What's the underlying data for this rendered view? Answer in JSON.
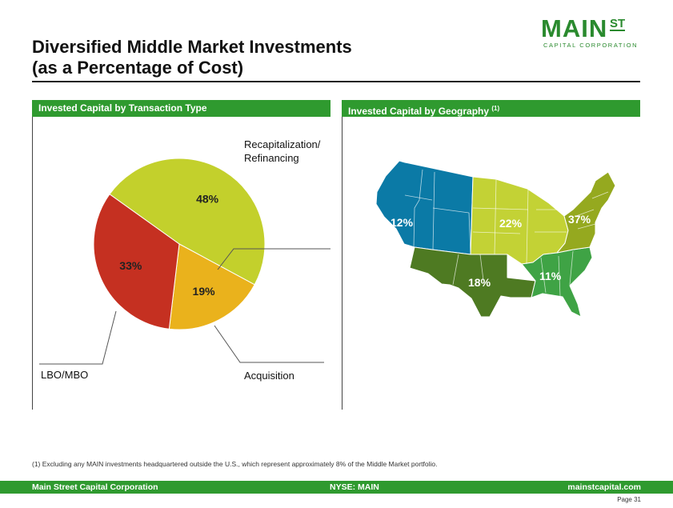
{
  "title": {
    "line1": "Diversified Middle Market Investments",
    "line2": "(as a Percentage of Cost)"
  },
  "logo": {
    "main": "MAIN",
    "st": "ST",
    "sub": "CAPITAL CORPORATION"
  },
  "left_panel": {
    "header": "Invested Capital by Transaction Type",
    "labels": {
      "recap_line1": "Recapitalization/",
      "recap_line2": "Refinancing",
      "lbo": "LBO/MBO",
      "acquisition": "Acquisition"
    }
  },
  "right_panel": {
    "header": "Invested Capital by Geography",
    "header_note": "(1)",
    "regions": [
      {
        "name": "West",
        "label": "12%",
        "color": "#0b7aa6"
      },
      {
        "name": "Southwest",
        "label": "18%",
        "color": "#4e7a22"
      },
      {
        "name": "Midwest",
        "label": "22%",
        "color": "#c3d235"
      },
      {
        "name": "Southeast",
        "label": "11%",
        "color": "#3fa345"
      },
      {
        "name": "Northeast",
        "label": "37%",
        "color": "#95a91f"
      }
    ]
  },
  "chart_data": {
    "type": "pie",
    "title": "Invested Capital by Transaction Type",
    "slices": [
      {
        "name": "Recapitalization/Refinancing",
        "value": 48,
        "label": "48%",
        "color": "#c3d02c"
      },
      {
        "name": "Acquisition",
        "value": 19,
        "label": "19%",
        "color": "#eab21c"
      },
      {
        "name": "LBO/MBO",
        "value": 33,
        "label": "33%",
        "color": "#c53021"
      }
    ]
  },
  "footnote": "(1)    Excluding any MAIN investments headquartered outside the U.S., which represent approximately 8% of the Middle Market portfolio.",
  "footer": {
    "left": "Main Street Capital Corporation",
    "center": "NYSE: MAIN",
    "right": "mainstcapital.com"
  },
  "page": "Page  31"
}
